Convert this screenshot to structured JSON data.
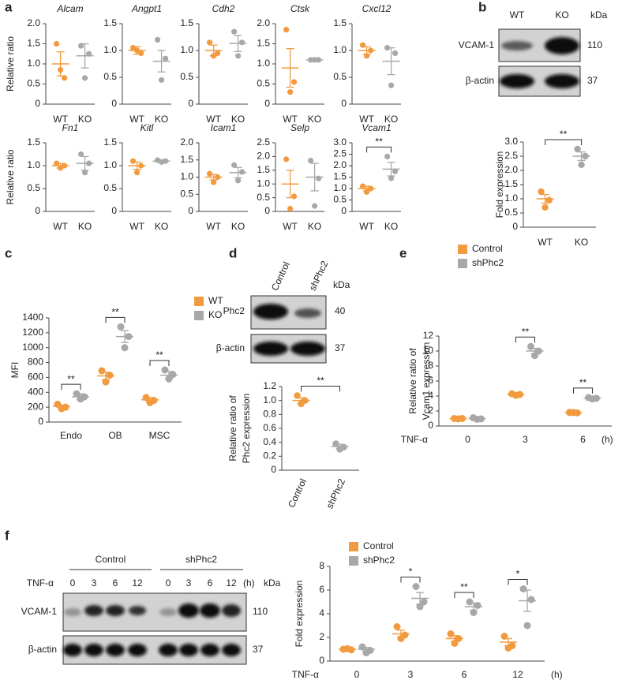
{
  "panels": [
    "a",
    "b",
    "c",
    "d",
    "e",
    "f"
  ],
  "chart_data": [
    {
      "type": "dot",
      "title": "Alcam",
      "title_style": "italic",
      "ylabel": "Relative ratio",
      "categories": [
        "WT",
        "KO"
      ],
      "colors": [
        "#f29a3f",
        "#a8a8a8"
      ],
      "points": [
        [
          1.5,
          0.65,
          0.85
        ],
        [
          1.45,
          1.25,
          0.65
        ]
      ],
      "mean": [
        1.0,
        1.2
      ],
      "sem": [
        0.3,
        0.3
      ],
      "ylim": [
        0,
        2
      ],
      "yticks": [
        0,
        0.5,
        {
          "value": 1,
          "label": "1.0"
        },
        1.5,
        {
          "value": 2,
          "label": "2.0"
        }
      ]
    },
    {
      "type": "dot",
      "title": "Angpt1",
      "title_style": "italic",
      "categories": [
        "WT",
        "KO"
      ],
      "colors": [
        "#f29a3f",
        "#a8a8a8"
      ],
      "points": [
        [
          1.05,
          0.95,
          1.0
        ],
        [
          1.2,
          0.85,
          0.45
        ]
      ],
      "mean": [
        1.0,
        0.8
      ],
      "sem": [
        0.07,
        0.2
      ],
      "ylim": [
        0,
        1.5
      ],
      "yticks": [
        0,
        0.5,
        {
          "value": 1,
          "label": "1.0"
        },
        1.5
      ]
    },
    {
      "type": "dot",
      "title": "Cdh2",
      "title_style": "italic",
      "categories": [
        "WT",
        "KO"
      ],
      "colors": [
        "#f29a3f",
        "#a8a8a8"
      ],
      "points": [
        [
          1.15,
          0.95,
          0.9
        ],
        [
          1.35,
          1.15,
          0.9
        ]
      ],
      "mean": [
        1.0,
        1.13
      ],
      "sem": [
        0.1,
        0.15
      ],
      "ylim": [
        0,
        1.5
      ],
      "yticks": [
        0,
        0.5,
        {
          "value": 1,
          "label": "1.0"
        },
        1.5
      ]
    },
    {
      "type": "dot",
      "title": "Ctsk",
      "title_style": "italic",
      "categories": [
        "WT",
        "KO"
      ],
      "colors": [
        "#f29a3f",
        "#a8a8a8"
      ],
      "points": [
        [
          1.85,
          0.55,
          0.3
        ],
        [
          1.1,
          1.1,
          1.1
        ]
      ],
      "mean": [
        0.9,
        1.1
      ],
      "sem": [
        0.48,
        0.02
      ],
      "ylim": [
        0,
        2
      ],
      "yticks": [
        0,
        0.5,
        {
          "value": 1,
          "label": "1.0"
        },
        1.5,
        {
          "value": 2,
          "label": "2.0"
        }
      ]
    },
    {
      "type": "dot",
      "title": "Cxcl12",
      "title_style": "italic",
      "categories": [
        "WT",
        "KO"
      ],
      "colors": [
        "#f29a3f",
        "#a8a8a8"
      ],
      "points": [
        [
          1.1,
          1.0,
          0.9
        ],
        [
          1.05,
          0.95,
          0.35
        ]
      ],
      "mean": [
        1.0,
        0.8
      ],
      "sem": [
        0.07,
        0.25
      ],
      "ylim": [
        0,
        1.5
      ],
      "yticks": [
        0,
        0.5,
        {
          "value": 1,
          "label": "1.0"
        },
        1.5
      ]
    },
    {
      "type": "dot",
      "title": "Fn1",
      "title_style": "italic",
      "ylabel": "Relative ratio",
      "categories": [
        "WT",
        "KO"
      ],
      "colors": [
        "#f29a3f",
        "#a8a8a8"
      ],
      "points": [
        [
          1.05,
          1.0,
          0.95
        ],
        [
          1.25,
          1.05,
          0.85
        ]
      ],
      "mean": [
        1.0,
        1.05
      ],
      "sem": [
        0.05,
        0.15
      ],
      "ylim": [
        0,
        1.5
      ],
      "yticks": [
        0,
        0.5,
        {
          "value": 1,
          "label": "1.0"
        },
        1.5
      ]
    },
    {
      "type": "dot",
      "title": "Kitl",
      "title_style": "italic",
      "categories": [
        "WT",
        "KO"
      ],
      "colors": [
        "#f29a3f",
        "#a8a8a8"
      ],
      "points": [
        [
          1.1,
          1.0,
          0.85
        ],
        [
          1.12,
          1.1,
          1.08
        ]
      ],
      "mean": [
        1.0,
        1.1
      ],
      "sem": [
        0.08,
        0.02
      ],
      "ylim": [
        0,
        1.5
      ],
      "yticks": [
        0,
        0.5,
        {
          "value": 1,
          "label": "1.0"
        },
        1.5
      ]
    },
    {
      "type": "dot",
      "title": "Icam1",
      "title_style": "italic",
      "categories": [
        "WT",
        "KO"
      ],
      "colors": [
        "#f29a3f",
        "#a8a8a8"
      ],
      "points": [
        [
          1.1,
          1.0,
          0.85
        ],
        [
          1.35,
          1.15,
          0.9
        ]
      ],
      "mean": [
        1.0,
        1.13
      ],
      "sem": [
        0.08,
        0.15
      ],
      "ylim": [
        0,
        2
      ],
      "yticks": [
        0,
        0.5,
        {
          "value": 1,
          "label": "1.0"
        },
        1.5,
        {
          "value": 2,
          "label": "2.0"
        }
      ]
    },
    {
      "type": "dot",
      "title": "Selp",
      "title_style": "italic",
      "categories": [
        "WT",
        "KO"
      ],
      "colors": [
        "#f29a3f",
        "#a8a8a8"
      ],
      "points": [
        [
          1.9,
          0.55,
          0.1
        ],
        [
          1.85,
          1.2,
          0.2
        ]
      ],
      "mean": [
        1.0,
        1.25
      ],
      "sem": [
        0.5,
        0.5
      ],
      "ylim": [
        0,
        2.5
      ],
      "yticks": [
        0,
        0.5,
        {
          "value": 1,
          "label": "1.0"
        },
        1.5,
        {
          "value": 2,
          "label": "2.0"
        },
        2.5
      ]
    },
    {
      "type": "dot",
      "title": "Vcam1",
      "title_style": "italic",
      "categories": [
        "WT",
        "KO"
      ],
      "colors": [
        "#f29a3f",
        "#a8a8a8"
      ],
      "points": [
        [
          1.1,
          1.0,
          0.85
        ],
        [
          2.4,
          1.75,
          1.45
        ]
      ],
      "mean": [
        1.0,
        1.85
      ],
      "sem": [
        0.1,
        0.3
      ],
      "ylim": [
        0,
        3
      ],
      "yticks": [
        0,
        0.5,
        {
          "value": 1,
          "label": "1.0"
        },
        1.5,
        {
          "value": 2,
          "label": "2.0"
        },
        2.5,
        {
          "value": 3,
          "label": "3.0"
        }
      ],
      "significance": "**"
    },
    {
      "type": "dot",
      "ylabel": "Fold expression",
      "categories": [
        "WT",
        "KO"
      ],
      "colors": [
        "#f29a3f",
        "#a8a8a8"
      ],
      "points": [
        [
          1.25,
          0.95,
          0.7
        ],
        [
          2.75,
          2.5,
          2.2
        ]
      ],
      "mean": [
        1.0,
        2.5
      ],
      "sem": [
        0.15,
        0.15
      ],
      "ylim": [
        0,
        3
      ],
      "yticks": [
        0,
        0.5,
        {
          "value": 1,
          "label": "1.0"
        },
        1.5,
        {
          "value": 2,
          "label": "2.0"
        },
        2.5,
        {
          "value": 3,
          "label": "3.0"
        }
      ],
      "significance": "**"
    },
    {
      "type": "grouped-dot",
      "ylabel": "MFI",
      "categories": [
        "Endo",
        "OB",
        "MSC"
      ],
      "series": [
        {
          "name": "WT",
          "color": "#f29a3f",
          "points": [
            [
              240,
              200,
              180
            ],
            [
              690,
              630,
              540
            ],
            [
              330,
              290,
              260
            ]
          ],
          "mean": [
            210,
            620,
            300
          ],
          "sem": [
            20,
            50,
            30
          ]
        },
        {
          "name": "KO",
          "color": "#a8a8a8",
          "points": [
            [
              380,
              340,
              310
            ],
            [
              1280,
              1150,
              1000
            ],
            [
              700,
              640,
              580
            ]
          ],
          "mean": [
            340,
            1150,
            630
          ],
          "sem": [
            40,
            80,
            50
          ]
        }
      ],
      "ylim": [
        0,
        1400
      ],
      "yticks": [
        0,
        200,
        400,
        600,
        800,
        1000,
        1200,
        1400
      ],
      "significance": [
        "**",
        "**",
        "**"
      ],
      "legend": "upper right"
    },
    {
      "type": "dot",
      "ylabel": [
        "Relative ratio of",
        "Phc2 expression"
      ],
      "categories": [
        "Control",
        "shPhc2"
      ],
      "colors": [
        "#f29a3f",
        "#a8a8a8"
      ],
      "points": [
        [
          1.07,
          1.0,
          0.95
        ],
        [
          0.38,
          0.33,
          0.3
        ]
      ],
      "mean": [
        1.0,
        0.34
      ],
      "sem": [
        0.04,
        0.03
      ],
      "ylim": [
        0,
        1.2
      ],
      "yticks": [
        0,
        0.2,
        0.4,
        0.6,
        0.8,
        {
          "value": 1,
          "label": "1.0"
        },
        1.2
      ],
      "significance": "**"
    },
    {
      "type": "grouped-dot",
      "ylabel": [
        "Relative ratio of",
        "Vcam1 expression"
      ],
      "x_prefix": "TNF-α",
      "x_suffix": "(h)",
      "categories": [
        "0",
        "3",
        "6"
      ],
      "series": [
        {
          "name": "Control",
          "color": "#f29a3f",
          "points": [
            [
              1.0,
              1.0,
              0.95
            ],
            [
              4.3,
              4.2,
              4.1
            ],
            [
              1.8,
              1.75,
              1.8
            ]
          ],
          "mean": [
            1.0,
            4.2,
            1.8
          ],
          "sem": [
            0.02,
            0.1,
            0.03
          ]
        },
        {
          "name": "shPhc2",
          "color": "#a8a8a8",
          "points": [
            [
              1.1,
              0.95,
              0.9
            ],
            [
              10.6,
              10.0,
              9.4
            ],
            [
              3.8,
              3.7,
              3.6
            ]
          ],
          "mean": [
            1.0,
            10.0,
            3.7
          ],
          "sem": [
            0.06,
            0.35,
            0.06
          ]
        }
      ],
      "ylim": [
        0,
        12
      ],
      "yticks": [
        0,
        2,
        4,
        6,
        8,
        10,
        12
      ],
      "significance": [
        null,
        "**",
        "**"
      ],
      "legend": "upper left"
    },
    {
      "type": "grouped-dot",
      "ylabel": "Fold expression",
      "x_prefix": "TNF-α",
      "x_suffix": "(h)",
      "categories": [
        "0",
        "3",
        "6",
        "12"
      ],
      "series": [
        {
          "name": "Control",
          "color": "#f29a3f",
          "points": [
            [
              1.0,
              0.95,
              1.05
            ],
            [
              2.9,
              2.2,
              1.9
            ],
            [
              2.3,
              1.9,
              1.5
            ],
            [
              2.1,
              1.3,
              1.1
            ]
          ],
          "mean": [
            1.0,
            2.3,
            1.9,
            1.6
          ],
          "sem": [
            0.03,
            0.3,
            0.25,
            0.3
          ]
        },
        {
          "name": "shPhc2",
          "color": "#a8a8a8",
          "points": [
            [
              1.2,
              0.9,
              0.7
            ],
            [
              6.3,
              5.0,
              4.6
            ],
            [
              5.0,
              4.7,
              4.1
            ],
            [
              6.1,
              5.2,
              3.0
            ]
          ],
          "mean": [
            1.0,
            5.3,
            4.6,
            5.1
          ],
          "sem": [
            0.15,
            0.5,
            0.3,
            0.9
          ]
        }
      ],
      "ylim": [
        0,
        8
      ],
      "yticks": [
        0,
        2,
        4,
        6,
        8
      ],
      "significance": [
        null,
        "*",
        "**",
        "*"
      ],
      "legend": "upper left"
    }
  ],
  "blots": {
    "b": {
      "lanes": [
        "WT",
        "KO"
      ],
      "unit": "kDa",
      "rows": [
        {
          "label": "VCAM-1",
          "kda": "110"
        },
        {
          "label": "β-actin",
          "kda": "37"
        }
      ]
    },
    "d": {
      "lanes": [
        "Control",
        "shPhc2"
      ],
      "unit": "kDa",
      "rows": [
        {
          "label": "Phc2",
          "kda": "40"
        },
        {
          "label": "β-actin",
          "kda": "37"
        }
      ]
    },
    "f": {
      "groups": [
        "Control",
        "shPhc2"
      ],
      "treatment": "TNF-α",
      "lanes": [
        "0",
        "3",
        "6",
        "12",
        "0",
        "3",
        "6",
        "12"
      ],
      "time_unit": "(h)",
      "unit": "kDa",
      "rows": [
        {
          "label": "VCAM-1",
          "kda": "110"
        },
        {
          "label": "β-actin",
          "kda": "37"
        }
      ]
    }
  }
}
